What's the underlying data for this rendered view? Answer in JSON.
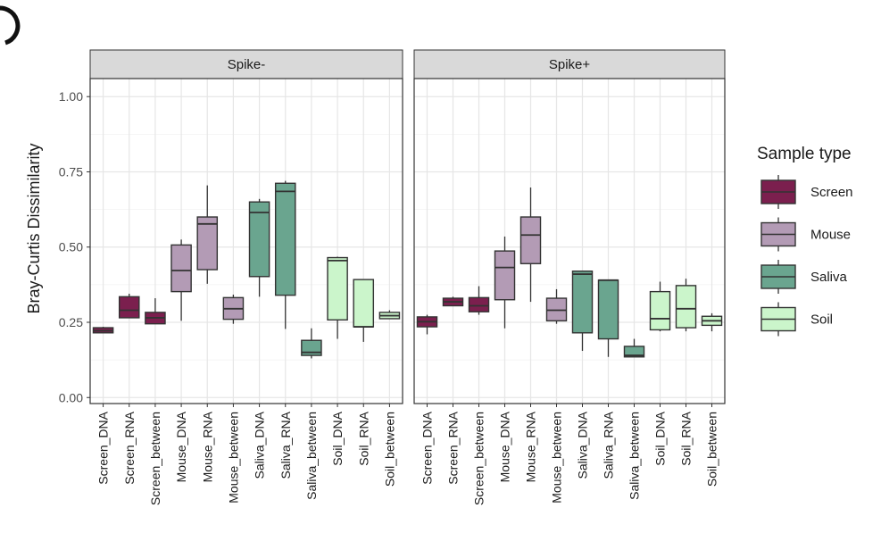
{
  "chart_data": {
    "type": "boxplot",
    "ylabel": "Bray-Curtis Dissimilarity",
    "ylim": [
      -0.02,
      1.06
    ],
    "yticks": [
      0.0,
      0.25,
      0.5,
      0.75,
      1.0
    ],
    "ytick_labels": [
      "0.00",
      "0.25",
      "0.50",
      "0.75",
      "1.00"
    ],
    "grid": true,
    "legend": {
      "title": "Sample type",
      "position": "right",
      "entries": [
        {
          "label": "Screen",
          "color": "#7b1f4e"
        },
        {
          "label": "Mouse",
          "color": "#b39bb5"
        },
        {
          "label": "Saliva",
          "color": "#6aa58f"
        },
        {
          "label": "Soil",
          "color": "#cbf5cb"
        }
      ]
    },
    "categories": [
      "Screen_DNA",
      "Screen_RNA",
      "Screen_between",
      "Mouse_DNA",
      "Mouse_RNA",
      "Mouse_between",
      "Saliva_DNA",
      "Saliva_RNA",
      "Saliva_between",
      "Soil_DNA",
      "Soil_RNA",
      "Soil_between"
    ],
    "category_group": [
      "Screen",
      "Screen",
      "Screen",
      "Mouse",
      "Mouse",
      "Mouse",
      "Saliva",
      "Saliva",
      "Saliva",
      "Soil",
      "Soil",
      "Soil"
    ],
    "panels": [
      {
        "title": "Spike-",
        "boxes": [
          {
            "min": 0.215,
            "q1": 0.215,
            "median": 0.222,
            "q3": 0.232,
            "max": 0.235
          },
          {
            "min": 0.265,
            "q1": 0.265,
            "median": 0.29,
            "q3": 0.335,
            "max": 0.345
          },
          {
            "min": 0.245,
            "q1": 0.245,
            "median": 0.265,
            "q3": 0.283,
            "max": 0.33
          },
          {
            "min": 0.255,
            "q1": 0.352,
            "median": 0.422,
            "q3": 0.507,
            "max": 0.525
          },
          {
            "min": 0.378,
            "q1": 0.425,
            "median": 0.577,
            "q3": 0.6,
            "max": 0.705
          },
          {
            "min": 0.245,
            "q1": 0.26,
            "median": 0.295,
            "q3": 0.332,
            "max": 0.342
          },
          {
            "min": 0.335,
            "q1": 0.402,
            "median": 0.615,
            "q3": 0.65,
            "max": 0.66
          },
          {
            "min": 0.228,
            "q1": 0.34,
            "median": 0.685,
            "q3": 0.712,
            "max": 0.72
          },
          {
            "min": 0.13,
            "q1": 0.14,
            "median": 0.15,
            "q3": 0.19,
            "max": 0.23
          },
          {
            "min": 0.195,
            "q1": 0.258,
            "median": 0.455,
            "q3": 0.465,
            "max": 0.468
          },
          {
            "min": 0.185,
            "q1": 0.235,
            "median": 0.235,
            "q3": 0.392,
            "max": 0.392
          },
          {
            "min": 0.262,
            "q1": 0.262,
            "median": 0.272,
            "q3": 0.283,
            "max": 0.29
          }
        ]
      },
      {
        "title": "Spike+",
        "boxes": [
          {
            "min": 0.21,
            "q1": 0.235,
            "median": 0.252,
            "q3": 0.268,
            "max": 0.275
          },
          {
            "min": 0.305,
            "q1": 0.305,
            "median": 0.318,
            "q3": 0.33,
            "max": 0.335
          },
          {
            "min": 0.275,
            "q1": 0.285,
            "median": 0.305,
            "q3": 0.332,
            "max": 0.37
          },
          {
            "min": 0.23,
            "q1": 0.325,
            "median": 0.432,
            "q3": 0.487,
            "max": 0.535
          },
          {
            "min": 0.318,
            "q1": 0.445,
            "median": 0.54,
            "q3": 0.6,
            "max": 0.698
          },
          {
            "min": 0.245,
            "q1": 0.255,
            "median": 0.29,
            "q3": 0.33,
            "max": 0.36
          },
          {
            "min": 0.155,
            "q1": 0.215,
            "median": 0.41,
            "q3": 0.42,
            "max": 0.42
          },
          {
            "min": 0.135,
            "q1": 0.195,
            "median": 0.39,
            "q3": 0.39,
            "max": 0.39
          },
          {
            "min": 0.135,
            "q1": 0.135,
            "median": 0.14,
            "q3": 0.17,
            "max": 0.195
          },
          {
            "min": 0.22,
            "q1": 0.225,
            "median": 0.262,
            "q3": 0.352,
            "max": 0.385
          },
          {
            "min": 0.22,
            "q1": 0.232,
            "median": 0.295,
            "q3": 0.372,
            "max": 0.395
          },
          {
            "min": 0.22,
            "q1": 0.24,
            "median": 0.255,
            "q3": 0.27,
            "max": 0.28
          }
        ]
      }
    ]
  }
}
